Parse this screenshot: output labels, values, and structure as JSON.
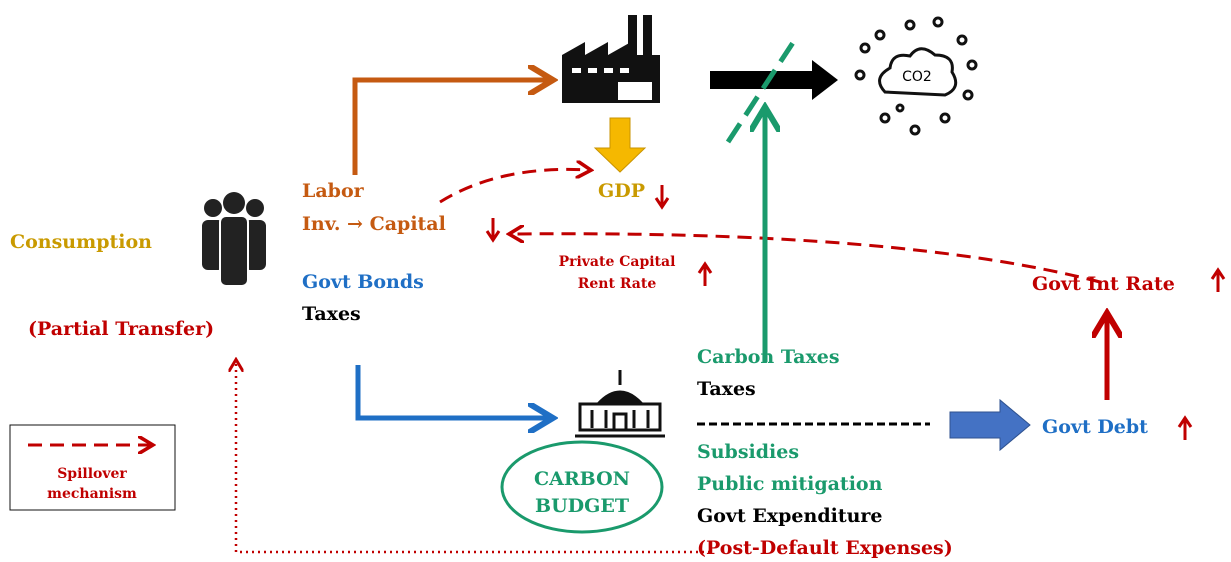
{
  "diagram": {
    "consumption": "Consumption",
    "partial_transfer": "(Partial Transfer)",
    "labor": "Labor",
    "inv_capital": "Inv. → Capital",
    "gdp": "GDP",
    "govt_bonds": "Govt Bonds",
    "taxes_household": "Taxes",
    "private_capital_rent_rate": [
      "Private Capital",
      "Rent Rate"
    ],
    "govt_int_rate": "Govt Int Rate",
    "co2": "CO2",
    "carbon_budget": [
      "CARBON",
      "BUDGET"
    ],
    "budget_revenue": [
      "Carbon Taxes",
      "Taxes"
    ],
    "budget_spending": [
      "Subsidies",
      "Public mitigation",
      "Govt Expenditure",
      "(Post-Default Expenses)"
    ],
    "govt_debt": "Govt Debt",
    "legend": [
      "Spillover",
      "mechanism"
    ]
  }
}
